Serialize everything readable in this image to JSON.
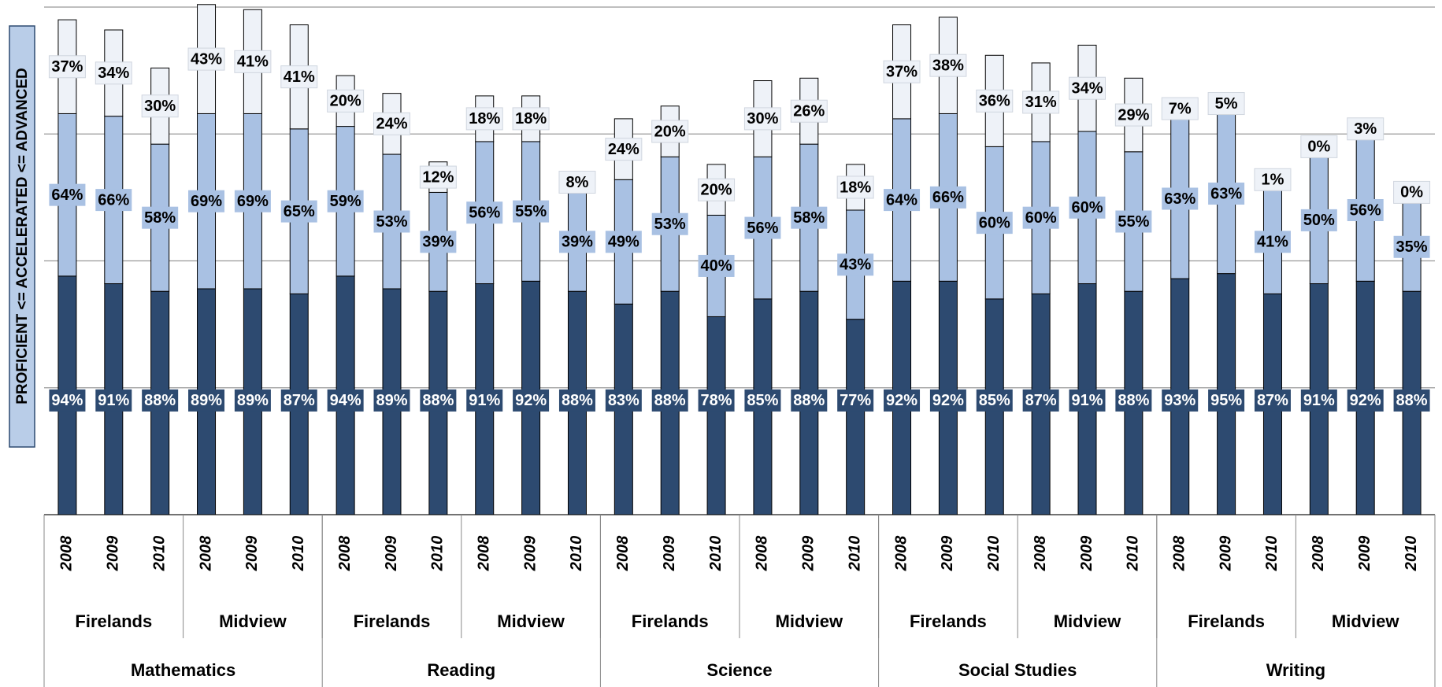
{
  "chart_data": {
    "type": "stacked_bar",
    "y_label": "PROFICIENT <= ACCELERATED <= ADVANCED",
    "categories": [
      "2008",
      "2009",
      "2010",
      "2008",
      "2009",
      "2010",
      "2008",
      "2009",
      "2010",
      "2008",
      "2009",
      "2010",
      "2008",
      "2009",
      "2010",
      "2008",
      "2009",
      "2010",
      "2008",
      "2009",
      "2010",
      "2008",
      "2009",
      "2010",
      "2008",
      "2009",
      "2010",
      "2008",
      "2009",
      "2010"
    ],
    "schools": [
      "Firelands",
      "Midview",
      "Firelands",
      "Midview",
      "Firelands",
      "Midview",
      "Firelands",
      "Midview",
      "Firelands",
      "Midview"
    ],
    "subjects": [
      "Mathematics",
      "Reading",
      "Science",
      "Social Studies",
      "Writing"
    ],
    "ylim": [
      0,
      200
    ],
    "yticks": [
      0,
      50,
      100,
      150,
      200
    ],
    "grid": true,
    "series": [
      {
        "color": "#2d4a70",
        "label_color": "#ffffff",
        "values": [
          94,
          91,
          88,
          89,
          89,
          87,
          94,
          89,
          88,
          91,
          92,
          88,
          83,
          88,
          78,
          85,
          88,
          77,
          92,
          92,
          85,
          87,
          91,
          88,
          93,
          95,
          87,
          91,
          92,
          88
        ],
        "value_labels": [
          "94%",
          "91%",
          "88%",
          "89%",
          "89%",
          "87%",
          "94%",
          "89%",
          "88%",
          "91%",
          "92%",
          "88%",
          "83%",
          "88%",
          "78%",
          "85%",
          "88%",
          "77%",
          "92%",
          "92%",
          "85%",
          "87%",
          "91%",
          "88%",
          "93%",
          "95%",
          "87%",
          "91%",
          "92%",
          "88%"
        ]
      },
      {
        "color": "#a9c1e3",
        "label_color": "#000000",
        "values": [
          64,
          66,
          58,
          69,
          69,
          65,
          59,
          53,
          39,
          56,
          55,
          39,
          49,
          53,
          40,
          56,
          58,
          43,
          64,
          66,
          60,
          60,
          60,
          55,
          63,
          63,
          41,
          50,
          56,
          35
        ],
        "value_labels": [
          "64%",
          "66%",
          "58%",
          "69%",
          "69%",
          "65%",
          "59%",
          "53%",
          "39%",
          "56%",
          "55%",
          "39%",
          "49%",
          "53%",
          "40%",
          "56%",
          "58%",
          "43%",
          "64%",
          "66%",
          "60%",
          "60%",
          "60%",
          "55%",
          "63%",
          "63%",
          "41%",
          "50%",
          "56%",
          "35%"
        ]
      },
      {
        "color": "#eef2f8",
        "label_color": "#000000",
        "values": [
          37,
          34,
          30,
          43,
          41,
          41,
          20,
          24,
          12,
          18,
          18,
          8,
          24,
          20,
          20,
          30,
          26,
          18,
          37,
          38,
          36,
          31,
          34,
          29,
          7,
          5,
          1,
          0,
          3,
          0
        ],
        "value_labels": [
          "37%",
          "34%",
          "30%",
          "43%",
          "41%",
          "41%",
          "20%",
          "24%",
          "12%",
          "18%",
          "18%",
          "8%",
          "24%",
          "20%",
          "20%",
          "30%",
          "26%",
          "18%",
          "37%",
          "38%",
          "36%",
          "31%",
          "34%",
          "29%",
          "7%",
          "5%",
          "1%",
          "0%",
          "3%",
          "0%"
        ]
      }
    ]
  }
}
